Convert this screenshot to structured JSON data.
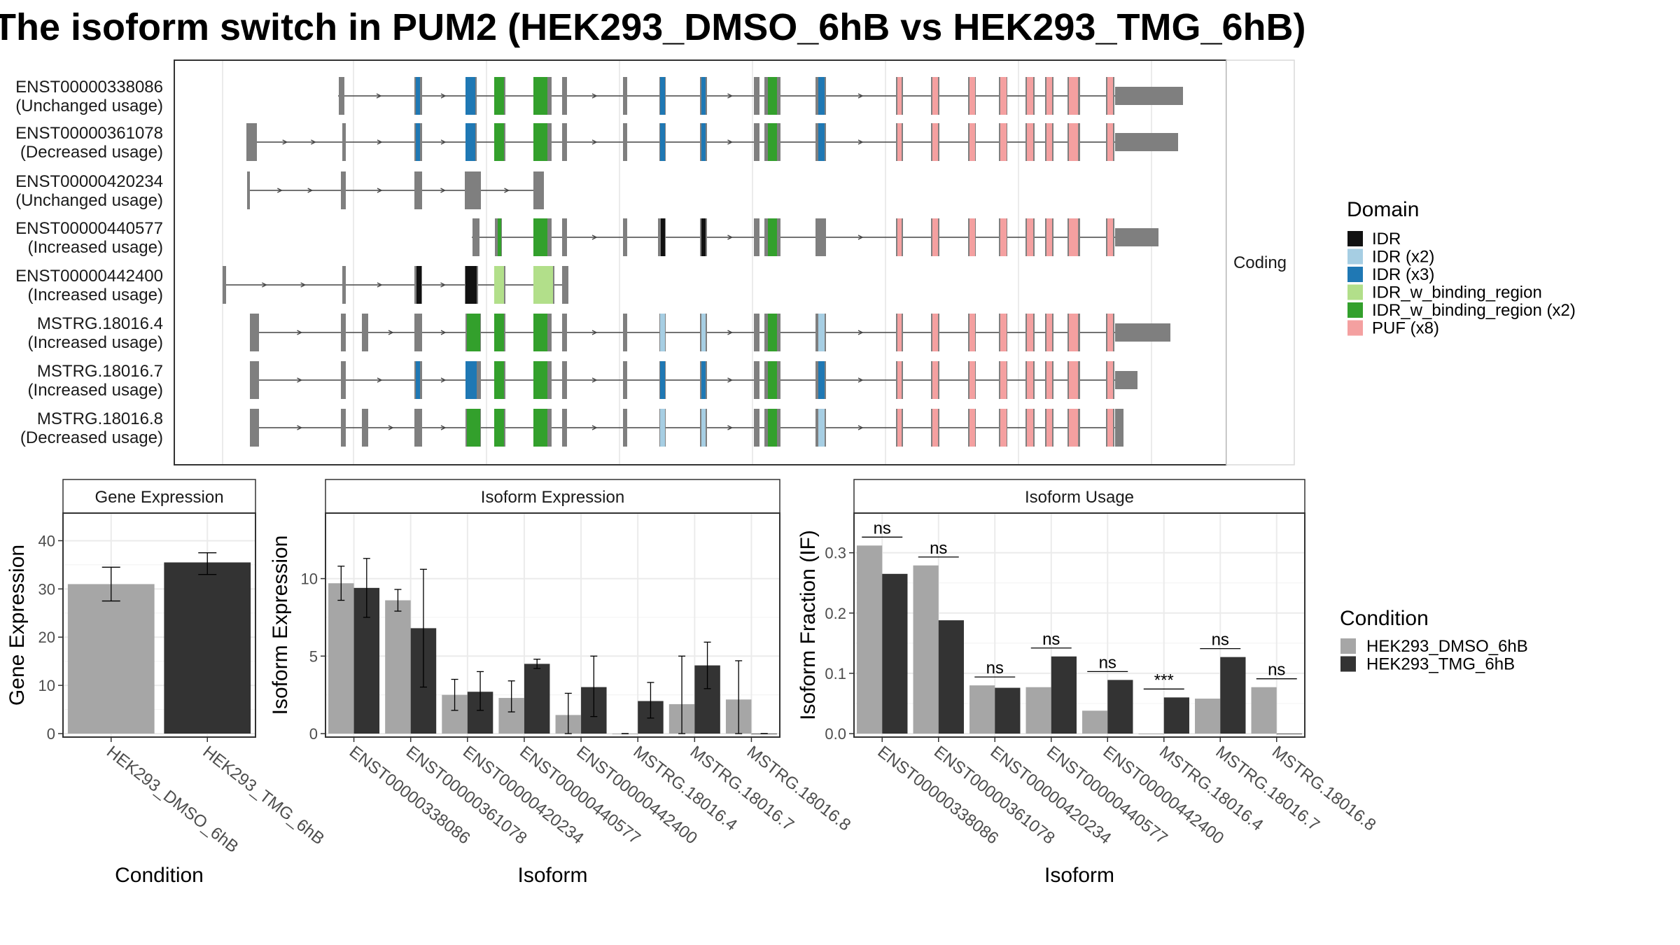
{
  "title": "The isoform switch in PUM2 (HEK293_DMSO_6hB vs HEK293_TMG_6hB)",
  "colors": {
    "IDR": "#111111",
    "IDR_x2": "#a6cee3",
    "IDR_x3": "#1f78b4",
    "IDR_w_binding_region": "#b2df8a",
    "IDR_w_binding_region_x2": "#33a02c",
    "PUF_x8": "#f4a0a0",
    "exon": "#7f7f7f",
    "dmso": "#a6a6a6",
    "tmg": "#333333"
  },
  "structure": {
    "facet_label": "Coding",
    "legend_title": "Domain",
    "legend": [
      {
        "label": "IDR",
        "color_key": "IDR"
      },
      {
        "label": "IDR (x2)",
        "color_key": "IDR_x2"
      },
      {
        "label": "IDR (x3)",
        "color_key": "IDR_x3"
      },
      {
        "label": "IDR_w_binding_region",
        "color_key": "IDR_w_binding_region"
      },
      {
        "label": "IDR_w_binding_region (x2)",
        "color_key": "IDR_w_binding_region_x2"
      },
      {
        "label": "PUF (x8)",
        "color_key": "PUF_x8"
      }
    ],
    "isoforms": [
      {
        "id": "ENST00000338086",
        "usage": "(Unchanged usage)"
      },
      {
        "id": "ENST00000361078",
        "usage": "(Decreased usage)"
      },
      {
        "id": "ENST00000420234",
        "usage": "(Unchanged usage)"
      },
      {
        "id": "ENST00000440577",
        "usage": "(Increased usage)"
      },
      {
        "id": "ENST00000442400",
        "usage": "(Increased usage)"
      },
      {
        "id": "MSTRG.18016.4",
        "usage": "(Increased usage)"
      },
      {
        "id": "MSTRG.18016.7",
        "usage": "(Increased usage)"
      },
      {
        "id": "MSTRG.18016.8",
        "usage": "(Decreased usage)"
      }
    ]
  },
  "chart_data": [
    {
      "type": "bar",
      "title": "Gene Expression",
      "xlabel": "Condition",
      "ylabel": "Gene Expression",
      "categories": [
        "HEK293_DMSO_6hB",
        "HEK293_TMG_6hB"
      ],
      "values": [
        31.0,
        35.5
      ],
      "err_low": [
        27.5,
        33.0
      ],
      "err_high": [
        34.5,
        37.5
      ],
      "ylim": [
        0,
        45
      ],
      "yticks": [
        0,
        10,
        20,
        30,
        40
      ]
    },
    {
      "type": "bar",
      "title": "Isoform Expression",
      "xlabel": "Isoform",
      "ylabel": "Isoform Expression",
      "categories": [
        "ENST00000338086",
        "ENST00000361078",
        "ENST00000420234",
        "ENST00000440577",
        "ENST00000442400",
        "MSTRG.18016.4",
        "MSTRG.18016.7",
        "MSTRG.18016.8"
      ],
      "series": [
        {
          "name": "HEK293_DMSO_6hB",
          "values": [
            9.7,
            8.6,
            2.5,
            2.3,
            1.2,
            0.0,
            1.9,
            2.2
          ],
          "err_low": [
            8.6,
            7.9,
            1.5,
            1.4,
            0.0,
            0.0,
            0.0,
            0.0
          ],
          "err_high": [
            10.8,
            9.3,
            3.5,
            3.4,
            2.6,
            0.0,
            5.0,
            4.7
          ]
        },
        {
          "name": "HEK293_TMG_6hB",
          "values": [
            9.4,
            6.8,
            2.7,
            4.5,
            3.0,
            2.1,
            4.4,
            0.0
          ],
          "err_low": [
            7.5,
            3.0,
            1.5,
            4.2,
            1.1,
            1.0,
            2.9,
            0.0
          ],
          "err_high": [
            11.3,
            10.6,
            4.0,
            4.8,
            5.0,
            3.3,
            5.9,
            0.0
          ]
        }
      ],
      "ylim": [
        0,
        14
      ],
      "yticks": [
        0,
        5,
        10
      ]
    },
    {
      "type": "bar",
      "title": "Isoform Usage",
      "xlabel": "Isoform",
      "ylabel": "Isoform Fraction (IF)",
      "categories": [
        "ENST00000338086",
        "ENST00000361078",
        "ENST00000420234",
        "ENST00000440577",
        "ENST00000442400",
        "MSTRG.18016.4",
        "MSTRG.18016.7",
        "MSTRG.18016.8"
      ],
      "series": [
        {
          "name": "HEK293_DMSO_6hB",
          "values": [
            0.312,
            0.279,
            0.08,
            0.077,
            0.038,
            0.0,
            0.058,
            0.077
          ]
        },
        {
          "name": "HEK293_TMG_6hB",
          "values": [
            0.265,
            0.188,
            0.076,
            0.128,
            0.089,
            0.06,
            0.127,
            0.0
          ]
        }
      ],
      "significance": [
        "ns",
        "ns",
        "ns",
        "ns",
        "ns",
        "***",
        "ns",
        "ns"
      ],
      "ylim": [
        0,
        0.36
      ],
      "yticks": [
        0.0,
        0.1,
        0.2,
        0.3
      ]
    }
  ],
  "condition_legend": {
    "title": "Condition",
    "items": [
      {
        "label": "HEK293_DMSO_6hB",
        "color_key": "dmso"
      },
      {
        "label": "HEK293_TMG_6hB",
        "color_key": "tmg"
      }
    ]
  }
}
